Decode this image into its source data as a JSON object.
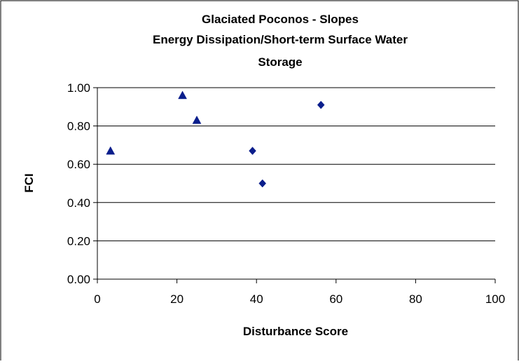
{
  "chart_data": {
    "type": "scatter",
    "title_lines": [
      "Glaciated Poconos - Slopes",
      "Energy Dissipation/Short-term Surface Water",
      "Storage"
    ],
    "xlabel": "Disturbance Score",
    "ylabel": "FCI",
    "xlim": [
      0,
      100
    ],
    "ylim": [
      0,
      1
    ],
    "x_ticks": [
      "0",
      "20",
      "40",
      "60",
      "80",
      "100"
    ],
    "y_ticks": [
      "0.00",
      "0.20",
      "0.40",
      "0.60",
      "0.80",
      "1.00"
    ],
    "grid": {
      "horizontal": true,
      "vertical": false
    },
    "legend": "none",
    "series": [
      {
        "marker": "triangle",
        "color": "#0b1e8c",
        "points": [
          {
            "x": 3.3,
            "y": 0.67
          },
          {
            "x": 21.4,
            "y": 0.96
          },
          {
            "x": 25.0,
            "y": 0.83
          }
        ]
      },
      {
        "marker": "diamond",
        "color": "#0b1e8c",
        "points": [
          {
            "x": 39.0,
            "y": 0.67
          },
          {
            "x": 41.5,
            "y": 0.5
          },
          {
            "x": 56.2,
            "y": 0.91
          }
        ]
      }
    ]
  }
}
